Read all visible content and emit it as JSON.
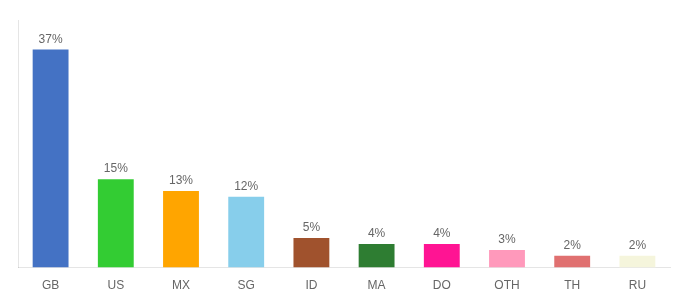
{
  "chart_data": {
    "type": "bar",
    "categories": [
      "GB",
      "US",
      "MX",
      "SG",
      "ID",
      "MA",
      "DO",
      "OTH",
      "TH",
      "RU"
    ],
    "values": [
      37,
      15,
      13,
      12,
      5,
      4,
      4,
      3,
      2,
      2
    ],
    "value_labels": [
      "37%",
      "15%",
      "13%",
      "12%",
      "5%",
      "4%",
      "4%",
      "3%",
      "2%",
      "2%"
    ],
    "colors": [
      "#4472c4",
      "#33cc33",
      "#ffa500",
      "#87ceeb",
      "#a0522d",
      "#2e7d32",
      "#ff1493",
      "#ff99bb",
      "#e07070",
      "#f5f5dc"
    ],
    "ylim": [
      0,
      42
    ],
    "grid": false,
    "data_labels": true,
    "tick_labels": "x"
  }
}
